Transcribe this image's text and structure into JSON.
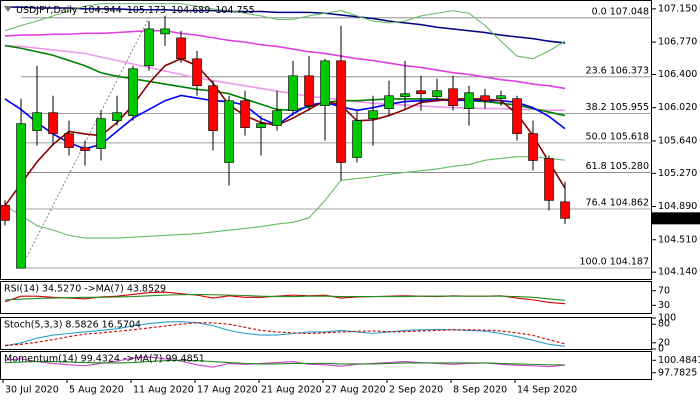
{
  "chart_data": [
    {
      "type": "candlestick",
      "title": "USDJPY,Daily",
      "categories": [
        null,
        "30 Jul 2020",
        null,
        null,
        null,
        "5 Aug 2020",
        null,
        null,
        null,
        "11 Aug 2020",
        null,
        null,
        null,
        "17 Aug 2020",
        null,
        null,
        null,
        "21 Aug 2020",
        null,
        null,
        null,
        "27 Aug 2020",
        null,
        null,
        null,
        "2 Sep 2020",
        null,
        null,
        null,
        "8 Sep 2020",
        null,
        null,
        null,
        "14 Sep 2020",
        null,
        null
      ],
      "open": [
        104.903,
        104.185,
        105.758,
        105.963,
        105.724,
        105.564,
        105.553,
        105.872,
        105.929,
        106.499,
        106.864,
        106.818,
        106.579,
        106.271,
        105.393,
        106.1,
        105.792,
        105.815,
        105.986,
        106.385,
        106.043,
        106.556,
        105.45,
        105.895,
        106.009,
        106.146,
        106.214,
        106.146,
        106.237,
        106.009,
        106.157,
        106.123,
        106.123,
        105.724,
        105.439,
        104.944
      ],
      "high": [
        104.96,
        106.123,
        106.499,
        106.157,
        105.872,
        105.644,
        105.986,
        106.157,
        106.499,
        107.012,
        107.069,
        106.898,
        106.67,
        106.328,
        106.157,
        106.214,
        105.929,
        106.214,
        106.556,
        106.613,
        106.579,
        106.955,
        105.986,
        106.157,
        106.328,
        106.556,
        106.385,
        106.351,
        106.385,
        106.271,
        106.237,
        106.214,
        106.157,
        105.872,
        105.473,
        105.173
      ],
      "low": [
        104.675,
        104.185,
        105.587,
        105.587,
        105.473,
        105.359,
        105.416,
        105.815,
        105.872,
        106.442,
        106.727,
        106.533,
        106.157,
        105.53,
        105.131,
        105.701,
        105.473,
        105.758,
        105.929,
        105.986,
        105.644,
        105.188,
        105.393,
        105.587,
        105.929,
        106.009,
        105.986,
        106.1,
        105.986,
        105.815,
        106.009,
        106.043,
        105.644,
        105.302,
        104.846,
        104.689
      ],
      "close": [
        104.732,
        105.838,
        105.963,
        105.724,
        105.564,
        105.53,
        105.895,
        105.963,
        106.465,
        106.921,
        106.921,
        106.579,
        106.271,
        105.758,
        106.1,
        105.792,
        105.838,
        105.986,
        106.385,
        106.043,
        106.556,
        105.393,
        105.872,
        105.986,
        106.157,
        106.18,
        106.18,
        106.214,
        106.043,
        106.191,
        106.1,
        106.157,
        105.724,
        105.416,
        104.96,
        104.755
      ],
      "up_color": "#00c800",
      "down_color": "#ff0000",
      "ylim": [
        104.05,
        107.24
      ],
      "yticks": [
        {
          "value": 107.15,
          "label": "107.150"
        },
        {
          "value": 106.77,
          "label": "106.770"
        },
        {
          "value": 106.4,
          "label": "106.400"
        },
        {
          "value": 106.02,
          "label": "106.020"
        },
        {
          "value": 105.64,
          "label": "105.640"
        },
        {
          "value": 105.27,
          "label": "105.270"
        },
        {
          "value": 104.89,
          "label": "104.890"
        },
        {
          "value": 104.51,
          "label": "104.510"
        },
        {
          "value": 104.14,
          "label": "104.140"
        }
      ],
      "fib_levels": [
        {
          "value": 107.048,
          "label": "0.0 107.048"
        },
        {
          "value": 106.373,
          "label": "23.6 106.373"
        },
        {
          "value": 105.955,
          "label": "38.2 105.955"
        },
        {
          "value": 105.618,
          "label": "50.0 105.618"
        },
        {
          "value": 105.28,
          "label": "61.8 105.280"
        },
        {
          "value": 104.862,
          "label": "76.4 104.862"
        },
        {
          "value": 104.187,
          "label": "100.0 104.187"
        }
      ],
      "series": [
        {
          "color": "#000080",
          "values": [
            107.17,
            107.17,
            107.16,
            107.16,
            107.16,
            107.15,
            107.15,
            107.15,
            107.14,
            107.14,
            107.14,
            107.13,
            107.13,
            107.13,
            107.12,
            107.12,
            107.12,
            107.11,
            107.11,
            107.11,
            107.1,
            107.08,
            107.06,
            107.04,
            107.01,
            106.99,
            106.97,
            106.94,
            106.92,
            106.9,
            106.88,
            106.85,
            106.83,
            106.81,
            106.78,
            106.76
          ]
        },
        {
          "color": "#e040e0",
          "values": [
            106.84,
            106.85,
            106.85,
            106.86,
            106.86,
            106.87,
            106.87,
            106.88,
            106.89,
            106.9,
            106.9,
            106.87,
            106.85,
            106.82,
            106.79,
            106.77,
            106.74,
            106.72,
            106.69,
            106.66,
            106.64,
            106.61,
            106.58,
            106.56,
            106.53,
            106.5,
            106.48,
            106.45,
            106.42,
            106.4,
            106.37,
            106.34,
            106.32,
            106.29,
            106.27,
            106.24
          ]
        },
        {
          "color": "#ee99ee",
          "values": [
            106.73,
            106.72,
            106.7,
            106.68,
            106.66,
            106.64,
            106.6,
            106.56,
            106.52,
            106.48,
            106.44,
            106.4,
            106.36,
            106.33,
            106.3,
            106.27,
            106.24,
            106.21,
            106.18,
            106.15,
            106.13,
            106.11,
            106.09,
            106.07,
            106.06,
            106.05,
            106.04,
            106.03,
            106.02,
            106.02,
            106.01,
            106.01,
            106.0,
            106.0,
            105.99,
            105.99
          ]
        },
        {
          "color": "#008000",
          "values": [
            106.73,
            106.7,
            106.66,
            106.62,
            106.56,
            106.5,
            106.42,
            106.38,
            106.35,
            106.32,
            106.29,
            106.26,
            106.23,
            106.21,
            106.18,
            106.12,
            106.06,
            106.0,
            105.99,
            106.03,
            106.08,
            106.1,
            106.1,
            106.11,
            106.12,
            106.12,
            106.12,
            106.12,
            106.11,
            106.1,
            106.09,
            106.07,
            106.05,
            106.01,
            105.97,
            105.93
          ]
        },
        {
          "color": "#0000ff",
          "values": [
            106.12,
            106.0,
            105.85,
            105.72,
            105.62,
            105.55,
            105.6,
            105.75,
            105.9,
            106.0,
            106.1,
            106.16,
            106.13,
            106.1,
            106.09,
            106.05,
            105.9,
            105.82,
            105.95,
            106.05,
            106.08,
            106.03,
            105.99,
            106.02,
            106.06,
            106.09,
            106.1,
            106.11,
            106.1,
            106.11,
            106.1,
            106.1,
            106.08,
            106.02,
            105.92,
            105.78
          ]
        },
        {
          "color": "#8b0000",
          "values": [
            104.9,
            105.15,
            105.4,
            105.6,
            105.75,
            105.72,
            105.7,
            105.85,
            106.05,
            106.3,
            106.5,
            106.58,
            106.5,
            106.3,
            106.05,
            105.93,
            105.85,
            105.82,
            105.9,
            106.0,
            106.1,
            106.05,
            105.87,
            105.88,
            105.93,
            106.0,
            106.08,
            106.1,
            106.12,
            106.12,
            106.12,
            106.1,
            105.95,
            105.7,
            105.4,
            105.1
          ]
        },
        {
          "color": "#66bb66",
          "values": [
            106.9,
            106.96,
            107.01,
            107.07,
            107.13,
            107.18,
            107.21,
            107.21,
            107.21,
            107.21,
            107.21,
            107.21,
            107.18,
            107.15,
            107.13,
            107.1,
            107.07,
            107.03,
            107.03,
            107.07,
            107.1,
            107.13,
            107.07,
            107.01,
            106.99,
            107.01,
            107.07,
            107.1,
            107.13,
            107.1,
            106.96,
            106.78,
            106.61,
            106.58,
            106.67,
            106.78
          ]
        },
        {
          "color": "#66bb66",
          "values": [
            104.9,
            104.79,
            104.67,
            104.62,
            104.56,
            104.53,
            104.53,
            104.53,
            104.54,
            104.55,
            104.56,
            104.57,
            104.58,
            104.6,
            104.62,
            104.64,
            104.66,
            104.69,
            104.71,
            104.76,
            104.96,
            105.19,
            105.21,
            105.23,
            105.26,
            105.28,
            105.3,
            105.32,
            105.35,
            105.37,
            105.42,
            105.44,
            105.46,
            105.46,
            105.44,
            105.42
          ]
        }
      ]
    },
    {
      "type": "line",
      "title": "RSI(14) 34.5270 ->MA(7) 43.8529",
      "ylim": [
        9,
        94
      ],
      "yticks": [
        70,
        30
      ],
      "series": [
        {
          "color": "#cc0000",
          "values": [
            40,
            55,
            55,
            52,
            50,
            48,
            53,
            55,
            60,
            65,
            66,
            62,
            58,
            50,
            56,
            52,
            52,
            55,
            58,
            56,
            58,
            50,
            53,
            54,
            55,
            56,
            55,
            54,
            56,
            55,
            55,
            56,
            50,
            45,
            38,
            34.527
          ]
        },
        {
          "color": "#228b22",
          "values": [
            45,
            47,
            49,
            50,
            51,
            52,
            52,
            53,
            54,
            56,
            58,
            59,
            60,
            59,
            58,
            57,
            55,
            54,
            54,
            55,
            55,
            54,
            54,
            54,
            54,
            54,
            55,
            55,
            55,
            55,
            55,
            55,
            54,
            52,
            48,
            43.853
          ]
        }
      ]
    },
    {
      "type": "line",
      "title": "Stoch(5,3,3) 8.5826 16.5704",
      "ylim": [
        0,
        100
      ],
      "yticks": [
        100,
        80,
        20,
        0
      ],
      "series": [
        {
          "color": "#2a9fd0",
          "values": [
            10,
            20,
            35,
            45,
            50,
            55,
            60,
            65,
            75,
            82,
            87,
            88,
            85,
            75,
            60,
            50,
            45,
            45,
            50,
            55,
            55,
            60,
            55,
            50,
            55,
            60,
            62,
            63,
            62,
            60,
            58,
            50,
            40,
            28,
            15,
            8.583
          ]
        },
        {
          "color": "#cc0000",
          "dashed": true,
          "values": [
            12,
            15,
            22,
            30,
            40,
            48,
            52,
            57,
            62,
            68,
            74,
            80,
            85,
            84,
            80,
            70,
            60,
            55,
            52,
            50,
            52,
            55,
            57,
            58,
            56,
            56,
            58,
            60,
            62,
            62,
            61,
            58,
            52,
            44,
            30,
            16.57
          ]
        }
      ]
    },
    {
      "type": "line",
      "title": "Momentum(14) 99.4324 ->MA(7) 99.4851",
      "ylim": [
        96.43,
        102.28
      ],
      "yticks": [
        100.4841,
        97.7825
      ],
      "series": [
        {
          "color": "#cc44cc",
          "values": [
            100.5,
            100.8,
            100.2,
            99.8,
            99.5,
            99.3,
            99.8,
            100.3,
            101.0,
            101.2,
            100.8,
            100.3,
            99.5,
            99.0,
            99.8,
            99.6,
            99.8,
            100.0,
            100.2,
            99.6,
            99.5,
            99.2,
            99.6,
            99.8,
            100.0,
            100.2,
            100.0,
            99.8,
            99.6,
            99.8,
            99.9,
            99.6,
            99.4,
            99.3,
            99.1,
            99.432
          ]
        },
        {
          "color": "#228b22",
          "values": [
            100.0,
            100.1,
            100.2,
            100.2,
            100.1,
            100.0,
            99.9,
            99.9,
            100.0,
            100.2,
            100.4,
            100.5,
            100.4,
            100.2,
            100.0,
            99.8,
            99.7,
            99.7,
            99.8,
            99.8,
            99.8,
            99.7,
            99.7,
            99.7,
            99.8,
            99.9,
            99.9,
            99.9,
            99.9,
            99.9,
            99.9,
            99.8,
            99.7,
            99.6,
            99.5,
            99.485
          ]
        }
      ]
    }
  ]
}
